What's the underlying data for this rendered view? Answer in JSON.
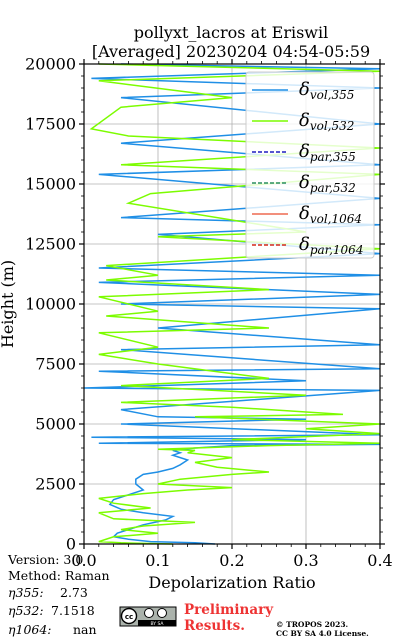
{
  "chart_data": {
    "type": "line",
    "title": "pollyxt_lacros at Eriswil",
    "subtitle": "[Averaged] 20230204 04:54-05:59",
    "xlabel": "Depolarization Ratio",
    "ylabel": "Height (m)",
    "xlim": [
      0.0,
      0.4
    ],
    "ylim": [
      0,
      20000
    ],
    "x_ticks": [
      "0.0",
      "0.1",
      "0.2",
      "0.3",
      "0.4"
    ],
    "x_tick_values": [
      0.0,
      0.1,
      0.2,
      0.3,
      0.4
    ],
    "y_ticks": [
      "0",
      "2500",
      "5000",
      "7500",
      "10000",
      "12500",
      "15000",
      "17500",
      "20000"
    ],
    "y_tick_values": [
      0,
      2500,
      5000,
      7500,
      10000,
      12500,
      15000,
      17500,
      20000
    ],
    "grid": true,
    "legend_placement": "top-right",
    "series": [
      {
        "name": "δvol,355",
        "legend_main": "δ",
        "legend_sub": "vol,355",
        "color": "#1f8fe6",
        "dash": "solid",
        "points": [
          [
            0.177,
            0
          ],
          [
            0.15,
            50
          ],
          [
            0.09,
            100
          ],
          [
            0.06,
            200
          ],
          [
            0.04,
            300
          ],
          [
            0.045,
            450
          ],
          [
            0.06,
            600
          ],
          [
            0.08,
            800
          ],
          [
            0.11,
            1000
          ],
          [
            0.12,
            1150
          ],
          [
            0.08,
            1300
          ],
          [
            0.05,
            1450
          ],
          [
            0.035,
            1650
          ],
          [
            0.04,
            1850
          ],
          [
            0.06,
            2050
          ],
          [
            0.08,
            2250
          ],
          [
            0.07,
            2500
          ],
          [
            0.07,
            2700
          ],
          [
            0.08,
            2900
          ],
          [
            0.1,
            3000
          ],
          [
            0.12,
            3150
          ],
          [
            0.13,
            3300
          ],
          [
            0.14,
            3500
          ],
          [
            0.12,
            3700
          ],
          [
            0.13,
            3800
          ],
          [
            0.12,
            3900
          ],
          [
            0.15,
            4000
          ],
          [
            0.2,
            4100
          ],
          [
            0.4,
            4150
          ],
          [
            0.02,
            4200
          ],
          [
            0.3,
            4350
          ],
          [
            0.01,
            4450
          ],
          [
            0.4,
            4550
          ],
          [
            0.05,
            5000
          ],
          [
            0.3,
            5200
          ],
          [
            0.1,
            5300
          ],
          [
            0.05,
            5600
          ],
          [
            0.4,
            6400
          ],
          [
            0.0,
            6500
          ],
          [
            0.3,
            6800
          ],
          [
            0.02,
            7200
          ],
          [
            0.4,
            7300
          ],
          [
            0.05,
            8100
          ],
          [
            0.4,
            8300
          ],
          [
            0.1,
            9000
          ],
          [
            0.4,
            9800
          ],
          [
            0.05,
            10000
          ],
          [
            0.4,
            10400
          ],
          [
            0.02,
            10900
          ],
          [
            0.4,
            11200
          ],
          [
            0.02,
            11500
          ],
          [
            0.4,
            12100
          ],
          [
            0.1,
            12900
          ],
          [
            0.4,
            13300
          ],
          [
            0.05,
            13600
          ],
          [
            0.4,
            14400
          ],
          [
            0.02,
            15400
          ],
          [
            0.4,
            15800
          ],
          [
            0.05,
            16700
          ],
          [
            0.4,
            17500
          ],
          [
            0.05,
            18600
          ],
          [
            0.4,
            19000
          ],
          [
            0.01,
            19400
          ],
          [
            0.4,
            19800
          ],
          [
            0.05,
            20000
          ]
        ]
      },
      {
        "name": "δvol,532",
        "legend_main": "δ",
        "legend_sub": "vol,532",
        "color": "#7cfc00",
        "dash": "solid",
        "points": [
          [
            0.12,
            0
          ],
          [
            0.05,
            50
          ],
          [
            0.02,
            100
          ],
          [
            0.04,
            300
          ],
          [
            0.1,
            450
          ],
          [
            0.05,
            600
          ],
          [
            0.08,
            750
          ],
          [
            0.15,
            900
          ],
          [
            0.04,
            1050
          ],
          [
            0.02,
            1300
          ],
          [
            0.09,
            1500
          ],
          [
            0.04,
            1700
          ],
          [
            0.02,
            1900
          ],
          [
            0.08,
            2100
          ],
          [
            0.14,
            2250
          ],
          [
            0.2,
            2350
          ],
          [
            0.1,
            2500
          ],
          [
            0.13,
            2700
          ],
          [
            0.2,
            2900
          ],
          [
            0.25,
            3000
          ],
          [
            0.18,
            3200
          ],
          [
            0.15,
            3400
          ],
          [
            0.2,
            3600
          ],
          [
            0.14,
            3800
          ],
          [
            0.15,
            3900
          ],
          [
            0.1,
            3950
          ],
          [
            0.25,
            4100
          ],
          [
            0.4,
            4200
          ],
          [
            0.2,
            4350
          ],
          [
            0.4,
            4600
          ],
          [
            0.3,
            4800
          ],
          [
            0.4,
            5000
          ],
          [
            0.15,
            5300
          ],
          [
            0.35,
            5400
          ],
          [
            0.2,
            5700
          ],
          [
            0.05,
            5900
          ],
          [
            0.3,
            6200
          ],
          [
            0.05,
            6600
          ],
          [
            0.25,
            6900
          ],
          [
            0.1,
            7500
          ],
          [
            0.02,
            7900
          ],
          [
            0.1,
            8200
          ],
          [
            0.02,
            8800
          ],
          [
            0.25,
            9000
          ],
          [
            0.03,
            9500
          ],
          [
            0.1,
            9700
          ],
          [
            0.02,
            10300
          ],
          [
            0.25,
            10600
          ],
          [
            0.03,
            11000
          ],
          [
            0.1,
            11200
          ],
          [
            0.03,
            11600
          ],
          [
            0.4,
            12300
          ],
          [
            0.1,
            12800
          ],
          [
            0.3,
            13000
          ],
          [
            0.06,
            14200
          ],
          [
            0.09,
            14600
          ],
          [
            0.4,
            15400
          ],
          [
            0.05,
            15800
          ],
          [
            0.4,
            16500
          ],
          [
            0.06,
            17000
          ],
          [
            0.01,
            17300
          ],
          [
            0.05,
            18200
          ],
          [
            0.2,
            18600
          ],
          [
            0.02,
            19300
          ],
          [
            0.4,
            19700
          ],
          [
            0.02,
            20000
          ]
        ]
      },
      {
        "name": "δpar,355",
        "legend_main": "δ",
        "legend_sub": "par,355",
        "color": "#1f1fbf",
        "dash": "dashed",
        "points": []
      },
      {
        "name": "δpar,532",
        "legend_main": "δ",
        "legend_sub": "par,532",
        "color": "#2a8f5f",
        "dash": "dashed",
        "points": []
      },
      {
        "name": "δvol,1064",
        "legend_main": "δ",
        "legend_sub": "vol,1064",
        "color": "#ee6a50",
        "dash": "solid",
        "points": []
      },
      {
        "name": "δpar,1064",
        "legend_main": "δ",
        "legend_sub": "par,1064",
        "color": "#d62a1a",
        "dash": "dashed",
        "points": []
      }
    ]
  },
  "footer": {
    "version": "Version: 3.0",
    "method": "Method: Raman",
    "eta355_label": "η355:",
    "eta355_value": "2.73",
    "eta532_label": "η532:",
    "eta532_value": "7.1518",
    "eta1064_label": "η1064:",
    "eta1064_value": "nan",
    "preliminary_line1": "Preliminary",
    "preliminary_line2": "Results.",
    "copyright_line1": "© TROPOS 2023.",
    "copyright_line2": "CC BY SA 4.0 License.",
    "license_badge_text": "BY SA",
    "preliminary_color": "#ee3333"
  }
}
